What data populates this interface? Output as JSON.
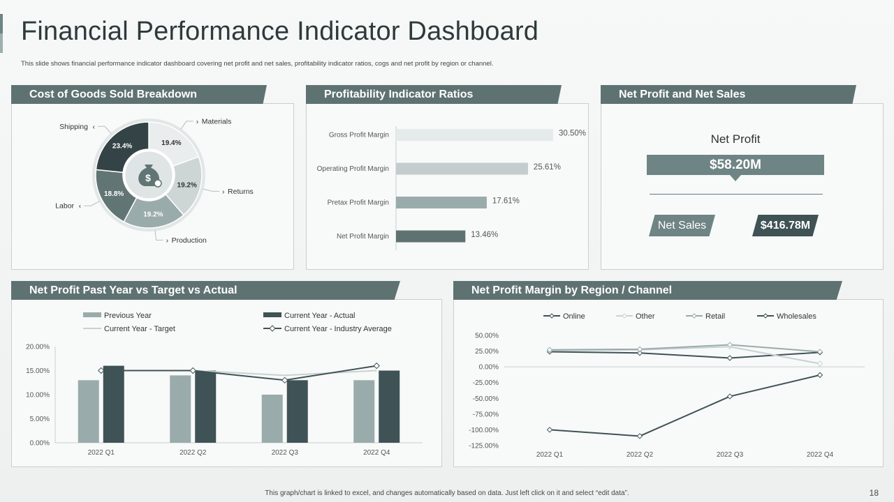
{
  "header": {
    "title": "Financial Performance Indicator Dashboard",
    "subtitle": "This slide shows financial performance indicator dashboard covering net profit and net sales, profitability indicator ratios, cogs and net profit by region or channel."
  },
  "panels": {
    "cogs": "Cost of Goods Sold Breakdown",
    "ratios": "Profitability  Indicator Ratios",
    "netprofit": "Net Profit and Net Sales",
    "pastyear": "Net Profit  Past Year vs Target vs Actual",
    "region": "Net Profit Margin by Region / Channel"
  },
  "net_profit": {
    "label": "Net Profit",
    "value": "$58.20M",
    "sales_label": "Net Sales",
    "sales_value": "$416.78M"
  },
  "footer": {
    "note": "This graph/chart is linked to excel,  and changes automatically based on data. Just left click on it and select “edit data”.",
    "page": "18"
  },
  "colors": {
    "dark": "#3f5255",
    "mid": "#6f8484",
    "light": "#9aabab",
    "pale": "#c8d1d1"
  },
  "chart_data": [
    {
      "id": "cogs",
      "type": "pie",
      "categories": [
        "Materials",
        "Returns",
        "Production",
        "Labor",
        "Shipping"
      ],
      "values": [
        19.4,
        19.2,
        19.2,
        18.8,
        23.4
      ],
      "labels": [
        "19.4%",
        "19.2%",
        "19.2%",
        "18.8%",
        "23.4%"
      ],
      "center_icon": "money-bag-icon"
    },
    {
      "id": "ratios",
      "type": "bar",
      "orientation": "horizontal",
      "categories": [
        "Gross Profit Margin",
        "Operating Profit Margin",
        "Pretax Profit Margin",
        "Net Profit Margin"
      ],
      "values": [
        30.5,
        25.61,
        17.61,
        13.46
      ],
      "labels": [
        "30.50%",
        "25.61%",
        "17.61%",
        "13.46%"
      ]
    },
    {
      "id": "pastyear",
      "type": "bar",
      "categories": [
        "2022 Q1",
        "2022 Q2",
        "2022 Q3",
        "2022 Q4"
      ],
      "ylim": [
        0,
        20
      ],
      "yticks": [
        "0.00%",
        "5.00%",
        "10.00%",
        "15.00%",
        "20.00%"
      ],
      "series": [
        {
          "name": "Previous Year",
          "kind": "bar",
          "values": [
            13,
            14,
            10,
            13
          ]
        },
        {
          "name": "Current Year - Actual",
          "kind": "bar",
          "values": [
            16,
            15,
            13,
            15
          ]
        },
        {
          "name": "Current Year - Target",
          "kind": "line",
          "values": [
            15,
            15,
            14,
            15
          ]
        },
        {
          "name": "Current Year - Industry Average",
          "kind": "line",
          "values": [
            15,
            15,
            13,
            16
          ]
        }
      ]
    },
    {
      "id": "region",
      "type": "line",
      "categories": [
        "2022 Q1",
        "2022 Q2",
        "2022 Q3",
        "2022 Q4"
      ],
      "ylim": [
        -125,
        50
      ],
      "yticks": [
        "50.00%",
        "25.00%",
        "0.00%",
        "-25.00%",
        "-50.00%",
        "-75.00%",
        "-100.00%",
        "-125.00%"
      ],
      "series": [
        {
          "name": "Online",
          "values": [
            24,
            22,
            14,
            23
          ]
        },
        {
          "name": "Other",
          "values": [
            26,
            27,
            32,
            5
          ]
        },
        {
          "name": "Retail",
          "values": [
            27,
            28,
            35,
            24
          ]
        },
        {
          "name": "Wholesales",
          "values": [
            -100,
            -110,
            -47,
            -13
          ]
        }
      ]
    }
  ]
}
